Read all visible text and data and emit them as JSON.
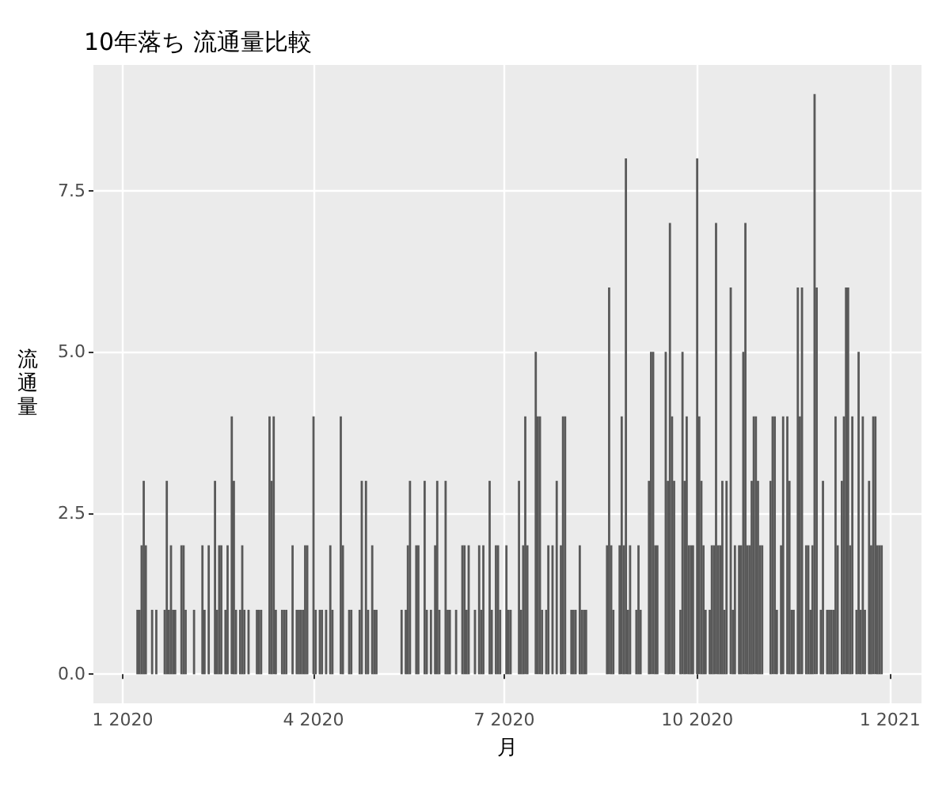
{
  "chart_data": {
    "type": "bar",
    "title": "10年落ち 流通量比較",
    "xlabel": "月",
    "ylabel": "流通量",
    "color": "#595959",
    "grid": true,
    "xlim": [
      "2019-12-18",
      "2021-01-16"
    ],
    "xticks": [
      {
        "value": "2020-01-01",
        "label": "1 2020"
      },
      {
        "value": "2020-04-01",
        "label": "4 2020"
      },
      {
        "value": "2020-07-01",
        "label": "7 2020"
      },
      {
        "value": "2020-10-01",
        "label": "10 2020"
      },
      {
        "value": "2021-01-01",
        "label": "1 2021"
      }
    ],
    "ylim": [
      -0.45,
      9.45
    ],
    "yticks": [
      {
        "value": 0,
        "label": "0.0"
      },
      {
        "value": 2.5,
        "label": "2.5"
      },
      {
        "value": 5,
        "label": "5.0"
      },
      {
        "value": 7.5,
        "label": "7.5"
      }
    ],
    "x": [
      "2020-01-08",
      "2020-01-09",
      "2020-01-10",
      "2020-01-11",
      "2020-01-12",
      "2020-01-15",
      "2020-01-17",
      "2020-01-21",
      "2020-01-22",
      "2020-01-23",
      "2020-01-24",
      "2020-01-25",
      "2020-01-26",
      "2020-01-29",
      "2020-01-30",
      "2020-01-31",
      "2020-02-04",
      "2020-02-08",
      "2020-02-09",
      "2020-02-11",
      "2020-02-14",
      "2020-02-15",
      "2020-02-16",
      "2020-02-17",
      "2020-02-19",
      "2020-02-20",
      "2020-02-22",
      "2020-02-23",
      "2020-02-24",
      "2020-02-26",
      "2020-02-27",
      "2020-02-28",
      "2020-03-01",
      "2020-03-05",
      "2020-03-06",
      "2020-03-07",
      "2020-03-11",
      "2020-03-12",
      "2020-03-13",
      "2020-03-14",
      "2020-03-17",
      "2020-03-18",
      "2020-03-19",
      "2020-03-22",
      "2020-03-24",
      "2020-03-25",
      "2020-03-26",
      "2020-03-27",
      "2020-03-28",
      "2020-03-29",
      "2020-04-01",
      "2020-04-02",
      "2020-04-04",
      "2020-04-05",
      "2020-04-07",
      "2020-04-09",
      "2020-04-10",
      "2020-04-14",
      "2020-04-15",
      "2020-04-18",
      "2020-04-19",
      "2020-04-23",
      "2020-04-24",
      "2020-04-26",
      "2020-04-27",
      "2020-04-29",
      "2020-04-30",
      "2020-05-01",
      "2020-05-13",
      "2020-05-15",
      "2020-05-16",
      "2020-05-17",
      "2020-05-20",
      "2020-05-21",
      "2020-05-24",
      "2020-05-25",
      "2020-05-27",
      "2020-05-29",
      "2020-05-30",
      "2020-05-31",
      "2020-06-03",
      "2020-06-04",
      "2020-06-05",
      "2020-06-08",
      "2020-06-11",
      "2020-06-12",
      "2020-06-13",
      "2020-06-14",
      "2020-06-17",
      "2020-06-19",
      "2020-06-20",
      "2020-06-21",
      "2020-06-24",
      "2020-06-25",
      "2020-06-27",
      "2020-06-28",
      "2020-06-29",
      "2020-07-02",
      "2020-07-03",
      "2020-07-04",
      "2020-07-08",
      "2020-07-09",
      "2020-07-10",
      "2020-07-11",
      "2020-07-12",
      "2020-07-16",
      "2020-07-17",
      "2020-07-18",
      "2020-07-19",
      "2020-07-21",
      "2020-07-22",
      "2020-07-24",
      "2020-07-26",
      "2020-07-28",
      "2020-07-29",
      "2020-07-30",
      "2020-08-02",
      "2020-08-03",
      "2020-08-04",
      "2020-08-06",
      "2020-08-07",
      "2020-08-08",
      "2020-08-09",
      "2020-08-19",
      "2020-08-20",
      "2020-08-21",
      "2020-08-22",
      "2020-08-25",
      "2020-08-26",
      "2020-08-27",
      "2020-08-28",
      "2020-08-29",
      "2020-08-30",
      "2020-09-02",
      "2020-09-03",
      "2020-09-04",
      "2020-09-08",
      "2020-09-09",
      "2020-09-10",
      "2020-09-11",
      "2020-09-12",
      "2020-09-16",
      "2020-09-17",
      "2020-09-18",
      "2020-09-19",
      "2020-09-20",
      "2020-09-23",
      "2020-09-24",
      "2020-09-25",
      "2020-09-26",
      "2020-09-27",
      "2020-09-28",
      "2020-09-29",
      "2020-10-01",
      "2020-10-02",
      "2020-10-03",
      "2020-10-04",
      "2020-10-05",
      "2020-10-07",
      "2020-10-08",
      "2020-10-09",
      "2020-10-10",
      "2020-10-11",
      "2020-10-12",
      "2020-10-13",
      "2020-10-14",
      "2020-10-15",
      "2020-10-17",
      "2020-10-18",
      "2020-10-19",
      "2020-10-21",
      "2020-10-22",
      "2020-10-23",
      "2020-10-24",
      "2020-10-25",
      "2020-10-26",
      "2020-10-27",
      "2020-10-28",
      "2020-10-29",
      "2020-10-30",
      "2020-10-31",
      "2020-11-01",
      "2020-11-05",
      "2020-11-06",
      "2020-11-07",
      "2020-11-08",
      "2020-11-10",
      "2020-11-11",
      "2020-11-13",
      "2020-11-14",
      "2020-11-15",
      "2020-11-16",
      "2020-11-18",
      "2020-11-19",
      "2020-11-20",
      "2020-11-22",
      "2020-11-23",
      "2020-11-24",
      "2020-11-25",
      "2020-11-26",
      "2020-11-27",
      "2020-11-29",
      "2020-11-30",
      "2020-12-02",
      "2020-12-03",
      "2020-12-04",
      "2020-12-05",
      "2020-12-06",
      "2020-12-07",
      "2020-12-09",
      "2020-12-10",
      "2020-12-11",
      "2020-12-12",
      "2020-12-13",
      "2020-12-14",
      "2020-12-16",
      "2020-12-17",
      "2020-12-18",
      "2020-12-19",
      "2020-12-20",
      "2020-12-22",
      "2020-12-23",
      "2020-12-24",
      "2020-12-25",
      "2020-12-26",
      "2020-12-27",
      "2020-12-28"
    ],
    "values": [
      1,
      1,
      2,
      3,
      2,
      1,
      1,
      1,
      3,
      1,
      2,
      1,
      1,
      2,
      2,
      1,
      1,
      2,
      1,
      2,
      3,
      1,
      2,
      2,
      1,
      2,
      4,
      3,
      1,
      1,
      2,
      1,
      1,
      1,
      1,
      1,
      4,
      3,
      4,
      1,
      1,
      1,
      1,
      2,
      1,
      1,
      1,
      1,
      2,
      2,
      4,
      1,
      1,
      1,
      1,
      2,
      1,
      4,
      2,
      1,
      1,
      1,
      3,
      3,
      1,
      2,
      1,
      1,
      1,
      1,
      2,
      3,
      2,
      2,
      3,
      1,
      1,
      2,
      3,
      1,
      3,
      1,
      1,
      1,
      2,
      2,
      1,
      2,
      1,
      2,
      1,
      2,
      3,
      1,
      2,
      2,
      1,
      2,
      1,
      1,
      3,
      1,
      2,
      4,
      2,
      5,
      4,
      4,
      1,
      1,
      2,
      2,
      3,
      2,
      4,
      4,
      1,
      1,
      1,
      2,
      1,
      1,
      1,
      2,
      6,
      2,
      1,
      2,
      4,
      2,
      8,
      1,
      2,
      1,
      2,
      1,
      3,
      5,
      5,
      2,
      2,
      5,
      3,
      7,
      4,
      3,
      1,
      5,
      3,
      4,
      2,
      2,
      2,
      8,
      4,
      3,
      2,
      1,
      1,
      2,
      2,
      7,
      2,
      2,
      3,
      1,
      3,
      6,
      1,
      2,
      2,
      2,
      5,
      7,
      2,
      2,
      3,
      4,
      4,
      3,
      2,
      2,
      3,
      4,
      4,
      1,
      2,
      4,
      4,
      3,
      1,
      1,
      6,
      4,
      6,
      2,
      2,
      1,
      2,
      9,
      6,
      1,
      3,
      1,
      1,
      1,
      1,
      4,
      2,
      3,
      4,
      6,
      6,
      2,
      4,
      1,
      5,
      1,
      4,
      1,
      3,
      2,
      4,
      4,
      2,
      2,
      2
    ]
  }
}
